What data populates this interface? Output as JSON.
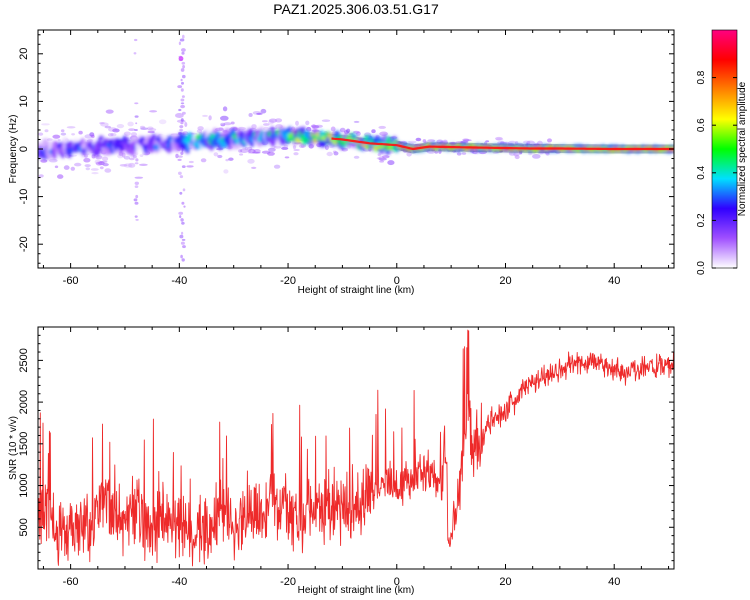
{
  "title": "PAZ1.2025.306.03.51.G17",
  "chart_data": [
    {
      "type": "heatmap",
      "xlabel": "Height of straight line (km)",
      "ylabel": "Frequency (Hz)",
      "xlim": [
        -66,
        51
      ],
      "ylim": [
        -25,
        25
      ],
      "xticks": [
        -60,
        -40,
        -20,
        0,
        20,
        40
      ],
      "yticks": [
        -20,
        -10,
        0,
        10,
        20
      ],
      "ridge": {
        "x": [
          -66,
          -60,
          -55,
          -50,
          -45,
          -40,
          -35,
          -30,
          -25,
          -20,
          -15,
          -10,
          -5,
          0,
          3,
          6,
          10,
          15,
          20,
          25,
          30,
          40,
          51
        ],
        "freq": [
          -0.5,
          0.2,
          0.6,
          0.9,
          1.2,
          1.3,
          1.9,
          2.2,
          2.6,
          2.8,
          2.5,
          2.0,
          1.2,
          0.8,
          0.0,
          0.5,
          0.4,
          0.3,
          0.2,
          0.1,
          0.1,
          0.0,
          0.0
        ]
      },
      "colorbar": {
        "label": "Normalized spectral amplitude",
        "range": [
          0,
          1
        ],
        "ticks": [
          "0.0",
          "0.2",
          "0.4",
          "0.6",
          "0.8"
        ],
        "colors": [
          "#ffffff",
          "#a050ff",
          "#3000ff",
          "#00e0ff",
          "#00ff00",
          "#ffff00",
          "#ff8000",
          "#ff0000",
          "#ff0080"
        ]
      }
    },
    {
      "type": "line",
      "xlabel": "Height of straight line (km)",
      "ylabel": "SNR (10 * v/v)",
      "xlim": [
        -66,
        51
      ],
      "ylim": [
        0,
        2900
      ],
      "xticks": [
        -60,
        -40,
        -20,
        0,
        20,
        40
      ],
      "yticks": [
        500,
        1000,
        1500,
        2000,
        2500
      ],
      "color": "#ee2a2a",
      "series": [
        {
          "name": "SNR",
          "x": [
            -66,
            -64,
            -62,
            -60,
            -58,
            -56,
            -54,
            -52,
            -50,
            -48,
            -46,
            -44,
            -42,
            -40,
            -38,
            -36,
            -34,
            -32,
            -30,
            -28,
            -26,
            -24,
            -22,
            -20,
            -18,
            -16,
            -14,
            -12,
            -10,
            -8,
            -6,
            -4,
            -2,
            0,
            2,
            4,
            6,
            8,
            9,
            10,
            11,
            12,
            13,
            14,
            16,
            18,
            20,
            22,
            24,
            26,
            28,
            30,
            32,
            34,
            36,
            38,
            40,
            42,
            44,
            46,
            48,
            51
          ],
          "values": [
            600,
            700,
            450,
            550,
            600,
            500,
            900,
            650,
            600,
            700,
            450,
            550,
            600,
            500,
            400,
            480,
            600,
            700,
            550,
            650,
            750,
            700,
            800,
            700,
            600,
            650,
            700,
            750,
            700,
            800,
            900,
            950,
            1050,
            1000,
            1050,
            1150,
            1150,
            1000,
            1300,
            600,
            700,
            1250,
            1900,
            1450,
            1650,
            1800,
            1900,
            2050,
            2200,
            2250,
            2350,
            2400,
            2450,
            2450,
            2500,
            2450,
            2400,
            2350,
            2400,
            2450,
            2400,
            2450
          ]
        }
      ]
    }
  ]
}
